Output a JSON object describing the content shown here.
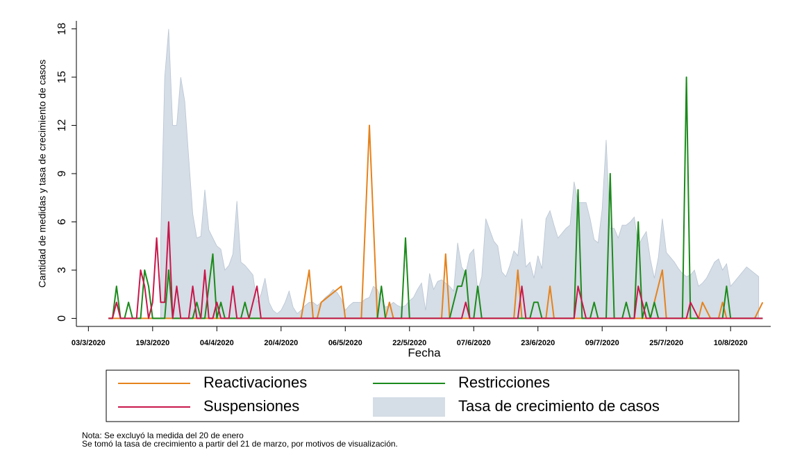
{
  "chart_data": {
    "type": "line",
    "xlabel": "Fecha",
    "ylabel": "Cantidad de medidas y tasa de crecimiento de casos",
    "notes": [
      "Nota: Se excluyó la medida del 20 de enero",
      "Se tomó la tasa de crecimiento a partir del 21 de marzo, por motivos de visualización."
    ],
    "xlim": [
      "2020-02-29",
      "2020-08-20"
    ],
    "xticks": [
      {
        "value": "2020-03-03",
        "label": "03/3/2020"
      },
      {
        "value": "2020-03-19",
        "label": "19/3/2020"
      },
      {
        "value": "2020-04-04",
        "label": "04/4/2020"
      },
      {
        "value": "2020-04-20",
        "label": "20/4/2020"
      },
      {
        "value": "2020-05-06",
        "label": "06/5/2020"
      },
      {
        "value": "2020-05-22",
        "label": "22/5/2020"
      },
      {
        "value": "2020-06-07",
        "label": "07/6/2020"
      },
      {
        "value": "2020-06-23",
        "label": "23/6/2020"
      },
      {
        "value": "2020-07-09",
        "label": "09/7/2020"
      },
      {
        "value": "2020-07-25",
        "label": "25/7/2020"
      },
      {
        "value": "2020-08-10",
        "label": "10/8/2020"
      }
    ],
    "ylim": [
      -0.5,
      18.5
    ],
    "yticks": [
      0,
      3,
      6,
      9,
      12,
      15,
      18
    ],
    "series": [
      {
        "name": "Reactivaciones",
        "color": "#e5821c",
        "x": [
          "2020-03-08",
          "2020-04-25",
          "2020-04-27",
          "2020-04-28",
          "2020-04-29",
          "2020-04-30",
          "2020-05-05",
          "2020-05-06",
          "2020-05-10",
          "2020-05-12",
          "2020-05-14",
          "2020-05-16",
          "2020-05-17",
          "2020-05-18",
          "2020-05-30",
          "2020-05-31",
          "2020-06-01",
          "2020-06-17",
          "2020-06-18",
          "2020-06-19",
          "2020-06-25",
          "2020-06-26",
          "2020-06-27",
          "2020-07-21",
          "2020-07-24",
          "2020-07-25",
          "2020-08-02",
          "2020-08-03",
          "2020-08-05",
          "2020-08-07",
          "2020-08-08",
          "2020-08-09",
          "2020-08-16",
          "2020-08-18"
        ],
        "values": [
          0,
          0,
          3,
          0,
          0,
          1,
          2,
          0,
          0,
          12,
          0,
          0,
          1,
          0,
          0,
          4,
          0,
          0,
          3,
          0,
          0,
          2,
          0,
          0,
          3,
          0,
          0,
          1,
          0,
          0,
          1,
          0,
          0,
          1
        ]
      },
      {
        "name": "Restricciones",
        "color": "#1b8a1b",
        "x": [
          "2020-03-08",
          "2020-03-09",
          "2020-03-10",
          "2020-03-11",
          "2020-03-12",
          "2020-03-13",
          "2020-03-14",
          "2020-03-16",
          "2020-03-17",
          "2020-03-18",
          "2020-03-19",
          "2020-03-22",
          "2020-03-23",
          "2020-03-24",
          "2020-03-29",
          "2020-03-30",
          "2020-03-31",
          "2020-04-01",
          "2020-04-02",
          "2020-04-03",
          "2020-04-04",
          "2020-04-05",
          "2020-04-06",
          "2020-04-10",
          "2020-04-11",
          "2020-04-12",
          "2020-05-14",
          "2020-05-15",
          "2020-05-16",
          "2020-05-20",
          "2020-05-21",
          "2020-05-22",
          "2020-06-01",
          "2020-06-03",
          "2020-06-04",
          "2020-06-05",
          "2020-06-06",
          "2020-06-07",
          "2020-06-08",
          "2020-06-09",
          "2020-06-21",
          "2020-06-22",
          "2020-06-23",
          "2020-06-24",
          "2020-07-02",
          "2020-07-03",
          "2020-07-04",
          "2020-07-06",
          "2020-07-07",
          "2020-07-08",
          "2020-07-10",
          "2020-07-11",
          "2020-07-12",
          "2020-07-14",
          "2020-07-15",
          "2020-07-16",
          "2020-07-17",
          "2020-07-18",
          "2020-07-19",
          "2020-07-20",
          "2020-07-21",
          "2020-07-22",
          "2020-07-23",
          "2020-07-29",
          "2020-07-30",
          "2020-07-31",
          "2020-08-08",
          "2020-08-09",
          "2020-08-10",
          "2020-08-18"
        ],
        "values": [
          0,
          0,
          2,
          0,
          0,
          1,
          0,
          0,
          3,
          2,
          0,
          0,
          3,
          0,
          0,
          1,
          0,
          0,
          2,
          4,
          0,
          1,
          0,
          0,
          1,
          0,
          0,
          2,
          0,
          0,
          5,
          0,
          0,
          2,
          2,
          3,
          0,
          0,
          2,
          0,
          0,
          1,
          1,
          0,
          0,
          8,
          0,
          0,
          1,
          0,
          0,
          9,
          0,
          0,
          1,
          0,
          0,
          6,
          0,
          1,
          0,
          1,
          0,
          0,
          15,
          0,
          0,
          2,
          0,
          0
        ]
      },
      {
        "name": "Suspensiones",
        "color": "#c8174b",
        "x": [
          "2020-03-08",
          "2020-03-09",
          "2020-03-10",
          "2020-03-11",
          "2020-03-15",
          "2020-03-16",
          "2020-03-17",
          "2020-03-18",
          "2020-03-19",
          "2020-03-20",
          "2020-03-21",
          "2020-03-22",
          "2020-03-23",
          "2020-03-24",
          "2020-03-25",
          "2020-03-26",
          "2020-03-28",
          "2020-03-29",
          "2020-03-30",
          "2020-03-31",
          "2020-04-01",
          "2020-04-02",
          "2020-04-03",
          "2020-04-04",
          "2020-04-05",
          "2020-04-07",
          "2020-04-08",
          "2020-04-09",
          "2020-04-12",
          "2020-04-14",
          "2020-04-15",
          "2020-06-04",
          "2020-06-05",
          "2020-06-06",
          "2020-06-18",
          "2020-06-19",
          "2020-06-20",
          "2020-07-02",
          "2020-07-03",
          "2020-07-05",
          "2020-07-17",
          "2020-07-18",
          "2020-07-20",
          "2020-07-30",
          "2020-07-31",
          "2020-08-02",
          "2020-08-18"
        ],
        "values": [
          0,
          0,
          1,
          0,
          0,
          3,
          2,
          0,
          1,
          5,
          1,
          1,
          6,
          0,
          2,
          0,
          0,
          2,
          0,
          0,
          3,
          0,
          0,
          1,
          0,
          0,
          2,
          0,
          0,
          2,
          0,
          0,
          1,
          0,
          0,
          2,
          0,
          0,
          2,
          0,
          0,
          2,
          0,
          0,
          1,
          0,
          0
        ]
      },
      {
        "name": "Tasa de crecimiento de casos",
        "type": "area",
        "color": "#d5dde6",
        "x": [
          "2020-03-21",
          "2020-03-22",
          "2020-03-23",
          "2020-03-24",
          "2020-03-25",
          "2020-03-26",
          "2020-03-27",
          "2020-03-28",
          "2020-03-29",
          "2020-03-30",
          "2020-03-31",
          "2020-04-01",
          "2020-04-02",
          "2020-04-03",
          "2020-04-04",
          "2020-04-05",
          "2020-04-06",
          "2020-04-07",
          "2020-04-08",
          "2020-04-09",
          "2020-04-10",
          "2020-04-11",
          "2020-04-12",
          "2020-04-13",
          "2020-04-14",
          "2020-04-15",
          "2020-04-16",
          "2020-04-17",
          "2020-04-18",
          "2020-04-19",
          "2020-04-20",
          "2020-04-21",
          "2020-04-22",
          "2020-04-23",
          "2020-04-24",
          "2020-04-25",
          "2020-04-26",
          "2020-04-27",
          "2020-04-28",
          "2020-04-29",
          "2020-04-30",
          "2020-05-01",
          "2020-05-02",
          "2020-05-03",
          "2020-05-04",
          "2020-05-05",
          "2020-05-06",
          "2020-05-07",
          "2020-05-08",
          "2020-05-09",
          "2020-05-10",
          "2020-05-11",
          "2020-05-12",
          "2020-05-13",
          "2020-05-14",
          "2020-05-15",
          "2020-05-16",
          "2020-05-17",
          "2020-05-18",
          "2020-05-19",
          "2020-05-20",
          "2020-05-21",
          "2020-05-22",
          "2020-05-23",
          "2020-05-24",
          "2020-05-25",
          "2020-05-26",
          "2020-05-27",
          "2020-05-28",
          "2020-05-29",
          "2020-05-30",
          "2020-05-31",
          "2020-06-01",
          "2020-06-02",
          "2020-06-03",
          "2020-06-04",
          "2020-06-05",
          "2020-06-06",
          "2020-06-07",
          "2020-06-08",
          "2020-06-09",
          "2020-06-10",
          "2020-06-11",
          "2020-06-12",
          "2020-06-13",
          "2020-06-14",
          "2020-06-15",
          "2020-06-16",
          "2020-06-17",
          "2020-06-18",
          "2020-06-19",
          "2020-06-20",
          "2020-06-21",
          "2020-06-22",
          "2020-06-23",
          "2020-06-24",
          "2020-06-25",
          "2020-06-26",
          "2020-06-27",
          "2020-06-28",
          "2020-06-29",
          "2020-06-30",
          "2020-07-01",
          "2020-07-02",
          "2020-07-03",
          "2020-07-04",
          "2020-07-05",
          "2020-07-06",
          "2020-07-07",
          "2020-07-08",
          "2020-07-09",
          "2020-07-10",
          "2020-07-11",
          "2020-07-12",
          "2020-07-13",
          "2020-07-14",
          "2020-07-15",
          "2020-07-16",
          "2020-07-17",
          "2020-07-18",
          "2020-07-19",
          "2020-07-20",
          "2020-07-21",
          "2020-07-22",
          "2020-07-23",
          "2020-07-24",
          "2020-07-25",
          "2020-07-26",
          "2020-07-27",
          "2020-07-28",
          "2020-07-29",
          "2020-07-30",
          "2020-07-31",
          "2020-08-01",
          "2020-08-02",
          "2020-08-03",
          "2020-08-04",
          "2020-08-05",
          "2020-08-06",
          "2020-08-07",
          "2020-08-08",
          "2020-08-09",
          "2020-08-10",
          "2020-08-11",
          "2020-08-12",
          "2020-08-13",
          "2020-08-14",
          "2020-08-15",
          "2020-08-16",
          "2020-08-17"
        ],
        "values": [
          5,
          15,
          18,
          12,
          12,
          15,
          13.5,
          10,
          6.5,
          5,
          5.1,
          8,
          5.5,
          5,
          4.5,
          4.3,
          3,
          3.3,
          4,
          7.3,
          3.5,
          3.3,
          3,
          2.7,
          1,
          1.5,
          2.5,
          1,
          0.5,
          0.3,
          0.5,
          1,
          1.7,
          0.7,
          0.3,
          0.5,
          0.8,
          1,
          1,
          0.8,
          1,
          1.3,
          1.5,
          1.8,
          1.6,
          1.2,
          0.5,
          0.8,
          1,
          1,
          1,
          1.2,
          1.3,
          2,
          1.8,
          1.2,
          0.7,
          0.8,
          1,
          0.8,
          0.7,
          0.8,
          1.1,
          1.3,
          1.8,
          2.2,
          0.5,
          2.8,
          1.8,
          2.3,
          2.4,
          2.2,
          2,
          1.7,
          4.7,
          3.2,
          2.8,
          4,
          4.3,
          1.7,
          2.6,
          6.2,
          5.5,
          4.8,
          4.5,
          2.9,
          2.6,
          3.3,
          4.2,
          3.9,
          6.2,
          3.2,
          3.5,
          2.5,
          3.9,
          3.1,
          6.2,
          6.7,
          5.8,
          5,
          5.3,
          5.6,
          5.8,
          8.5,
          7.2,
          7.2,
          7.2,
          6.2,
          4.9,
          4.7,
          6.8,
          11.1,
          5.6,
          5.6,
          5,
          5.8,
          5.8,
          6,
          6.3,
          4.5,
          5,
          5.4,
          3.7,
          2.5,
          3.8,
          6.2,
          4.1,
          3.8,
          3.5,
          3.1,
          2.8,
          2.6,
          2.7,
          3,
          2,
          2.2,
          2.5,
          3,
          3.5,
          3.7,
          3,
          3.4,
          2,
          2.3,
          2.6,
          2.9,
          3.2,
          3,
          2.8,
          2.6
        ]
      }
    ]
  }
}
